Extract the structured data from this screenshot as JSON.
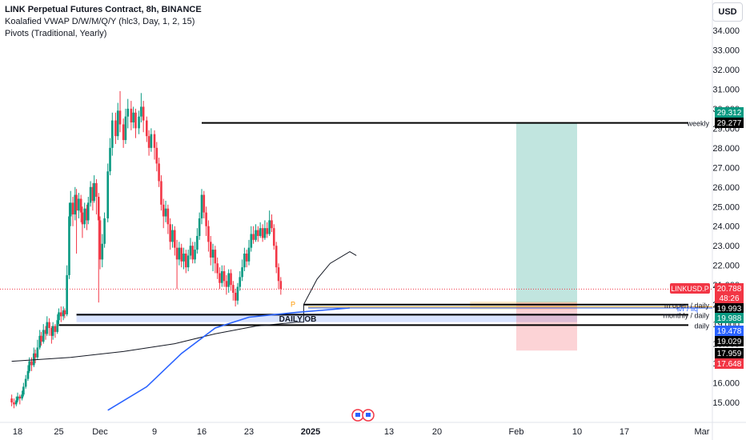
{
  "header": {
    "title": "LINK Perpetual Futures Contract, 8h, BINANCE",
    "indicator1": "Koalafied VWAP D/W/M/Q/Y  (hlc3, Day, 1, 2, 15)",
    "indicator2": "Pivots (Traditional, Yearly)",
    "currency_button": "USD"
  },
  "chart_data": {
    "type": "candlestick",
    "symbol": "LINKUSD.P",
    "y_axis": {
      "ticks": [
        "15.000",
        "16.000",
        "17.000",
        "18.000",
        "19.000",
        "20.000",
        "21.000",
        "22.000",
        "23.000",
        "24.000",
        "25.000",
        "26.000",
        "27.000",
        "28.000",
        "29.000",
        "30.000",
        "31.000",
        "32.000",
        "33.000",
        "34.000"
      ],
      "tick_values": [
        15,
        16,
        17,
        18,
        19,
        20,
        21,
        22,
        23,
        24,
        25,
        26,
        27,
        28,
        29,
        30,
        31,
        32,
        33,
        34
      ]
    },
    "x_axis": {
      "labels": [
        "18",
        "25",
        "Dec",
        "9",
        "16",
        "23",
        "2025",
        "13",
        "20",
        "Feb",
        "10",
        "17",
        "Mar"
      ],
      "label_dates": [
        "2024-11-18",
        "2024-11-25",
        "2024-12-02",
        "2024-12-09",
        "2024-12-16",
        "2024-12-23",
        "2025-01-01",
        "2025-01-13",
        "2025-01-20",
        "2025-02-01",
        "2025-02-10",
        "2025-02-17",
        "2025-03-01"
      ]
    },
    "price_line": 20.788,
    "price_tags": [
      {
        "text": "29.312",
        "price": 29.312,
        "color": "#089981"
      },
      {
        "text": "29.277",
        "price": 29.277,
        "color": "#000000"
      },
      {
        "text": "LINKUSD.P",
        "price": 20.788,
        "color": "#f23645",
        "label": true
      },
      {
        "text": "20.788",
        "price": 20.788,
        "color": "#f23645"
      },
      {
        "text": "48:26",
        "price": 20.788,
        "color": "#f23645",
        "sub": true
      },
      {
        "text": "19.993",
        "price": 19.993,
        "color": "#000000"
      },
      {
        "text": "19.988",
        "price": 19.988,
        "color": "#089981"
      },
      {
        "text": "19.478",
        "price": 19.478,
        "color": "#2962ff"
      },
      {
        "text": "19.029",
        "price": 19.029,
        "color": "#000000"
      },
      {
        "text": "17.959",
        "price": 17.959,
        "color": "#000000"
      },
      {
        "text": "17.648",
        "price": 17.648,
        "color": "#f23645"
      }
    ],
    "levels": [
      {
        "label": "weekly",
        "price": 29.277,
        "start": "2024-12-16"
      },
      {
        "label": "m open / daily",
        "price": 19.993,
        "start": "2024-12-31"
      },
      {
        "label": "monthly / daily",
        "price": 19.478,
        "start": "2024-11-28"
      },
      {
        "label": "daily",
        "price": 18.95,
        "start": "2024-11-25"
      }
    ],
    "zones": [
      {
        "name": "DAILY OB",
        "from": "2024-11-28",
        "to": "2025-02-10",
        "low": 19.1,
        "high": 19.55
      },
      {
        "name": "orange",
        "from": "2025-01-25",
        "to": "2025-02-10",
        "low": 19.75,
        "high": 20.15
      }
    ],
    "annotations": [
      {
        "text": "DAILY OB",
        "date": "2024-12-31",
        "price": 19.3
      },
      {
        "text": "s/r / liq",
        "price": 19.82
      },
      {
        "text": "P",
        "date": "2024-12-30",
        "price": 20.05
      }
    ],
    "position": {
      "from": "2025-02-01",
      "to": "2025-02-10",
      "entry": 20.1,
      "target": 29.277,
      "stop": 17.648
    },
    "candles": [
      [
        15.2,
        15.0,
        15.4,
        14.8
      ],
      [
        15.0,
        14.9,
        15.2,
        14.7
      ],
      [
        14.9,
        15.1,
        15.3,
        14.8
      ],
      [
        15.1,
        15.3,
        15.5,
        15.0
      ],
      [
        15.3,
        15.2,
        15.4,
        14.9
      ],
      [
        15.2,
        15.4,
        15.6,
        15.1
      ],
      [
        15.4,
        15.8,
        16.0,
        15.3
      ],
      [
        15.8,
        16.2,
        16.4,
        15.7
      ],
      [
        16.2,
        16.6,
        16.9,
        16.1
      ],
      [
        16.6,
        17.1,
        17.3,
        16.5
      ],
      [
        17.1,
        16.9,
        17.3,
        16.6
      ],
      [
        16.9,
        17.5,
        17.8,
        16.8
      ],
      [
        17.5,
        17.3,
        17.7,
        17.0
      ],
      [
        17.3,
        17.8,
        18.2,
        17.2
      ],
      [
        17.8,
        18.4,
        18.7,
        17.7
      ],
      [
        18.4,
        18.1,
        18.6,
        17.9
      ],
      [
        18.1,
        18.7,
        19.0,
        18.0
      ],
      [
        18.7,
        18.5,
        18.9,
        18.2
      ],
      [
        18.5,
        19.1,
        19.4,
        18.4
      ],
      [
        19.1,
        18.8,
        19.3,
        18.4
      ],
      [
        18.8,
        18.4,
        18.9,
        18.0
      ],
      [
        18.4,
        18.9,
        19.1,
        18.2
      ],
      [
        18.9,
        18.6,
        19.0,
        18.3
      ],
      [
        18.6,
        19.2,
        19.5,
        18.5
      ],
      [
        19.2,
        19.6,
        19.8,
        19.0
      ],
      [
        19.6,
        19.4,
        19.9,
        19.1
      ],
      [
        19.4,
        19.7,
        19.9,
        19.2
      ],
      [
        19.7,
        19.5,
        19.8,
        19.3
      ],
      [
        19.5,
        21.5,
        22.0,
        19.4
      ],
      [
        21.5,
        24.5,
        25.2,
        21.3
      ],
      [
        24.5,
        25.2,
        25.8,
        24.0
      ],
      [
        25.2,
        24.6,
        25.5,
        24.0
      ],
      [
        24.6,
        25.6,
        26.0,
        24.3
      ],
      [
        25.6,
        24.8,
        25.9,
        22.6
      ],
      [
        24.8,
        25.4,
        25.7,
        24.4
      ],
      [
        25.4,
        24.7,
        25.6,
        24.2
      ],
      [
        24.7,
        24.1,
        25.0,
        23.4
      ],
      [
        24.1,
        24.9,
        25.2,
        23.9
      ],
      [
        24.9,
        24.3,
        25.1,
        23.8
      ],
      [
        24.3,
        25.2,
        25.5,
        24.1
      ],
      [
        25.2,
        26.0,
        26.3,
        25.0
      ],
      [
        26.0,
        25.3,
        26.2,
        24.8
      ],
      [
        25.3,
        26.2,
        26.6,
        25.2
      ],
      [
        26.2,
        25.5,
        26.4,
        24.6
      ],
      [
        25.5,
        24.3,
        25.7,
        20.1
      ],
      [
        24.3,
        22.3,
        24.5,
        21.8
      ],
      [
        22.3,
        23.1,
        23.6,
        21.9
      ],
      [
        23.1,
        24.4,
        24.7,
        22.9
      ],
      [
        24.4,
        26.8,
        27.2,
        24.2
      ],
      [
        26.8,
        28.0,
        28.5,
        26.6
      ],
      [
        28.0,
        29.4,
        29.8,
        27.6
      ],
      [
        29.4,
        28.6,
        29.8,
        28.2
      ],
      [
        28.6,
        29.9,
        30.3,
        28.4
      ],
      [
        29.9,
        29.2,
        30.9,
        28.8
      ],
      [
        29.2,
        28.4,
        29.5,
        28.0
      ],
      [
        28.4,
        29.6,
        30.0,
        28.2
      ],
      [
        29.6,
        30.0,
        30.5,
        29.0
      ],
      [
        30.0,
        29.3,
        30.4,
        28.9
      ],
      [
        29.3,
        29.8,
        30.1,
        29.0
      ],
      [
        29.8,
        29.0,
        30.0,
        28.5
      ],
      [
        29.0,
        29.6,
        29.9,
        28.7
      ],
      [
        29.6,
        30.1,
        30.8,
        29.3
      ],
      [
        30.1,
        29.4,
        30.4,
        28.8
      ],
      [
        29.4,
        28.6,
        29.6,
        28.3
      ],
      [
        28.6,
        28.0,
        28.9,
        27.6
      ],
      [
        28.0,
        28.7,
        29.0,
        27.8
      ],
      [
        28.7,
        28.0,
        28.9,
        27.4
      ],
      [
        28.0,
        27.2,
        28.3,
        26.8
      ],
      [
        27.2,
        26.3,
        27.5,
        26.0
      ],
      [
        26.3,
        25.1,
        26.6,
        24.8
      ],
      [
        25.1,
        24.5,
        25.4,
        23.9
      ],
      [
        24.5,
        24.9,
        25.3,
        24.2
      ],
      [
        24.9,
        24.1,
        25.1,
        23.6
      ],
      [
        24.1,
        23.2,
        24.4,
        22.8
      ],
      [
        23.2,
        23.8,
        24.1,
        22.9
      ],
      [
        23.8,
        22.9,
        24.0,
        22.5
      ],
      [
        22.9,
        22.3,
        23.3,
        20.8
      ],
      [
        22.3,
        22.9,
        23.2,
        22.0
      ],
      [
        22.9,
        22.2,
        23.1,
        21.9
      ],
      [
        22.2,
        22.6,
        22.9,
        21.8
      ],
      [
        22.6,
        21.9,
        22.8,
        21.6
      ],
      [
        21.9,
        22.5,
        22.8,
        21.7
      ],
      [
        22.5,
        23.0,
        23.4,
        22.3
      ],
      [
        23.0,
        22.3,
        23.2,
        22.1
      ],
      [
        22.3,
        22.8,
        23.2,
        22.1
      ],
      [
        22.8,
        23.5,
        23.9,
        22.6
      ],
      [
        23.5,
        24.4,
        24.7,
        23.3
      ],
      [
        24.4,
        25.6,
        25.9,
        24.1
      ],
      [
        25.6,
        24.7,
        25.8,
        24.4
      ],
      [
        24.7,
        24.0,
        25.0,
        23.5
      ],
      [
        24.0,
        23.2,
        24.3,
        22.7
      ],
      [
        23.2,
        22.4,
        23.5,
        22.0
      ],
      [
        22.4,
        22.8,
        23.1,
        21.7
      ],
      [
        22.8,
        22.1,
        23.0,
        21.6
      ],
      [
        22.1,
        21.6,
        22.4,
        21.3
      ],
      [
        21.6,
        21.1,
        21.9,
        20.8
      ],
      [
        21.1,
        21.7,
        22.0,
        20.9
      ],
      [
        21.7,
        21.2,
        22.0,
        20.9
      ],
      [
        21.2,
        20.9,
        21.5,
        20.5
      ],
      [
        20.9,
        21.6,
        21.8,
        20.6
      ],
      [
        21.6,
        21.0,
        21.8,
        20.7
      ],
      [
        21.0,
        20.6,
        21.2,
        20.2
      ],
      [
        20.6,
        20.2,
        20.8,
        19.9
      ],
      [
        20.2,
        20.9,
        21.1,
        20.0
      ],
      [
        20.9,
        21.4,
        21.7,
        20.7
      ],
      [
        21.4,
        21.9,
        22.3,
        21.2
      ],
      [
        21.9,
        22.6,
        22.9,
        21.7
      ],
      [
        22.6,
        22.2,
        22.8,
        21.9
      ],
      [
        22.2,
        22.9,
        23.3,
        22.0
      ],
      [
        22.9,
        23.6,
        24.0,
        22.7
      ],
      [
        23.6,
        23.3,
        24.0,
        23.1
      ],
      [
        23.3,
        23.8,
        24.1,
        23.2
      ],
      [
        23.8,
        23.5,
        24.0,
        23.2
      ],
      [
        23.5,
        23.9,
        24.2,
        23.4
      ],
      [
        23.9,
        23.4,
        24.1,
        23.2
      ],
      [
        23.4,
        23.9,
        24.3,
        23.3
      ],
      [
        23.9,
        23.6,
        24.2,
        23.4
      ],
      [
        23.6,
        24.3,
        24.8,
        23.5
      ],
      [
        24.3,
        23.9,
        24.6,
        23.7
      ],
      [
        23.9,
        23.0,
        24.1,
        22.8
      ],
      [
        23.0,
        21.9,
        23.2,
        21.6
      ],
      [
        21.9,
        21.2,
        22.1,
        20.8
      ],
      [
        21.2,
        20.8,
        21.4,
        20.5
      ]
    ]
  }
}
